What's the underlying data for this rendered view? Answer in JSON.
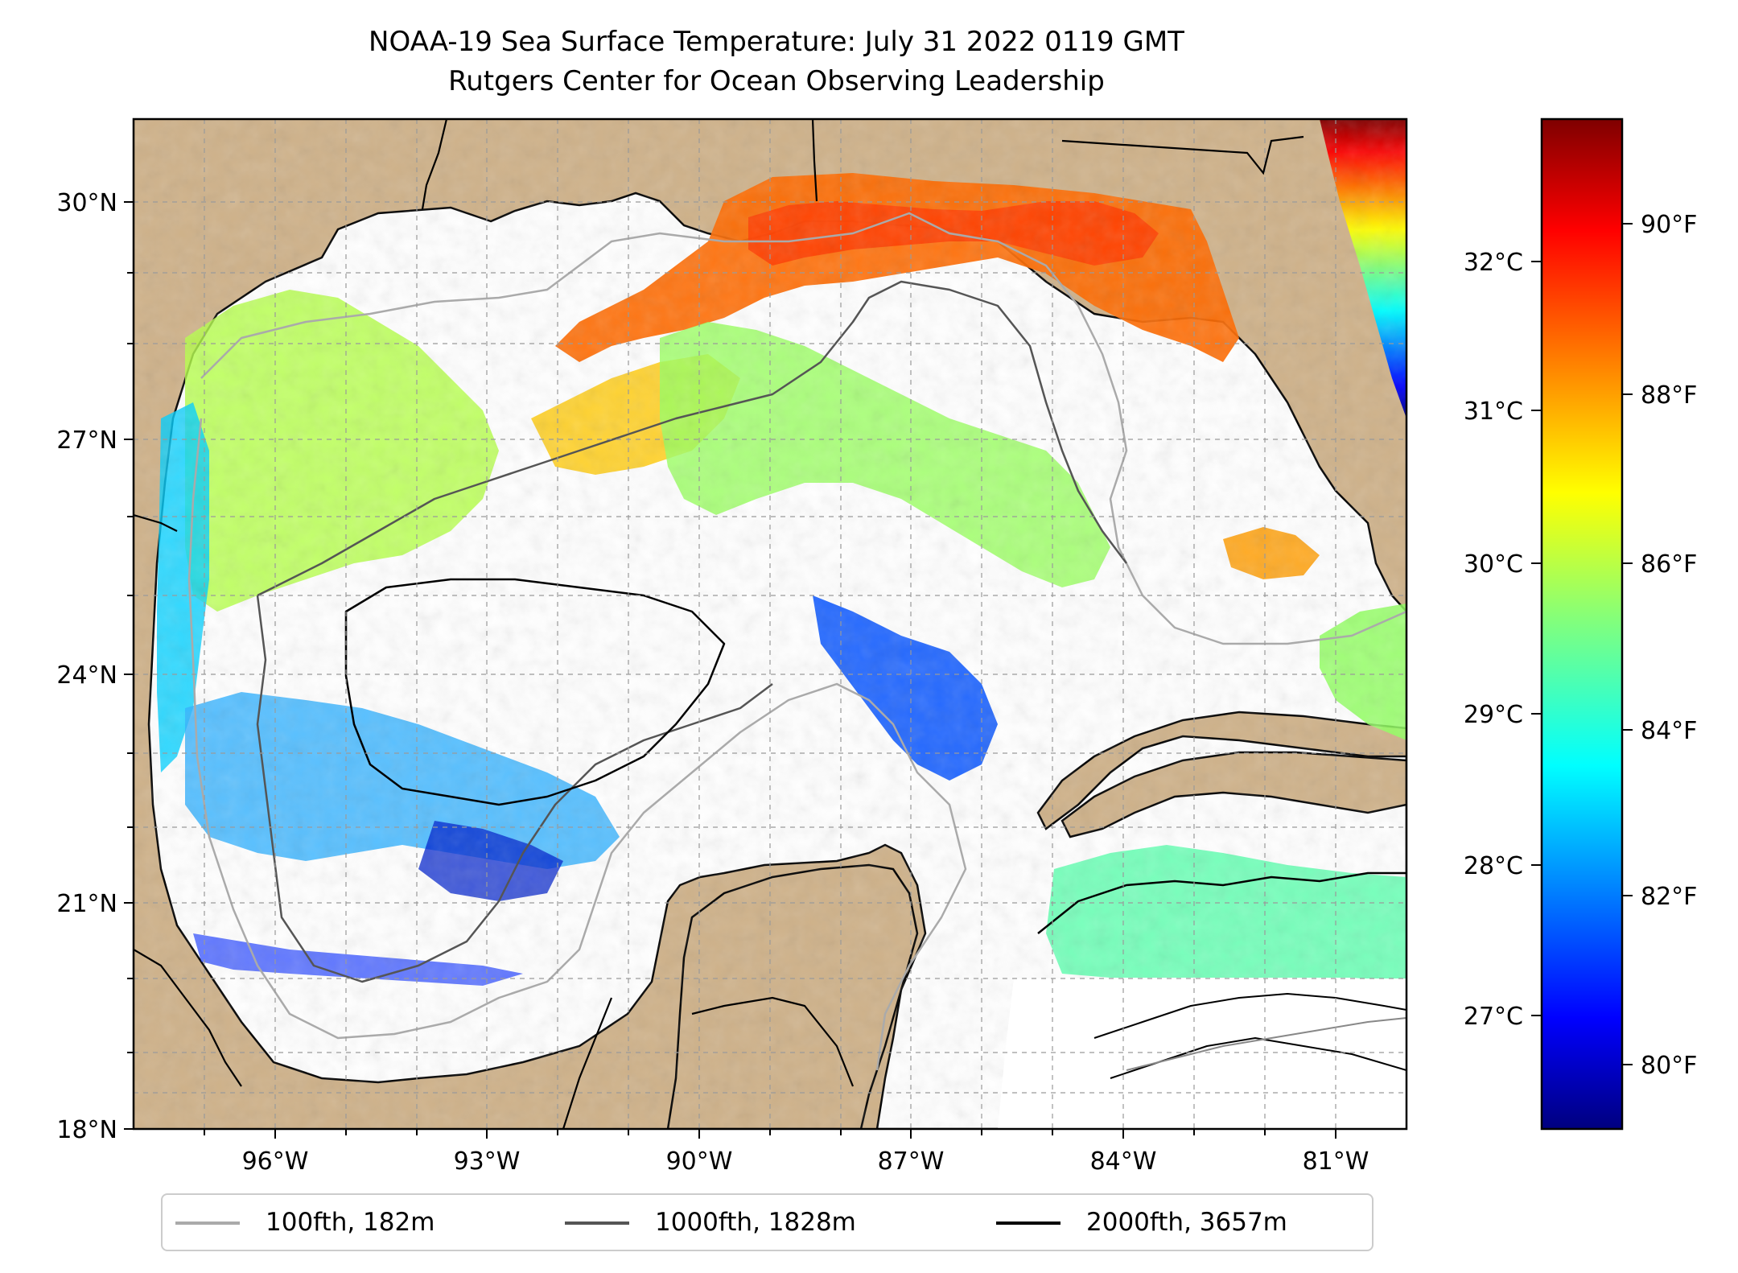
{
  "title": "NOAA-19 Sea Surface Temperature: July 31 2022 0119 GMT",
  "subtitle": "Rutgers Center for Ocean Observing Leadership",
  "map": {
    "lat_ticks": [
      "30°N",
      "27°N",
      "24°N",
      "21°N",
      "18°N"
    ],
    "lon_ticks": [
      "96°W",
      "93°W",
      "90°W",
      "87°W",
      "84°W",
      "81°W"
    ],
    "lat_range": [
      18,
      31
    ],
    "lon_range": [
      -98,
      -80
    ],
    "colors": {
      "land": "#cfb28a",
      "ocean_nodata": "#ffffff",
      "coast": "#000000"
    }
  },
  "colorbar": {
    "celsius_ticks": [
      "32°C",
      "31°C",
      "30°C",
      "29°C",
      "28°C",
      "27°C"
    ],
    "fahrenheit_ticks": [
      "90°F",
      "88°F",
      "86°F",
      "84°F",
      "82°F",
      "80°F"
    ],
    "colormap": "jet"
  },
  "legend": {
    "items": [
      {
        "label": "100fth, 182m",
        "color": "#aaaaaa"
      },
      {
        "label": "1000fth, 1828m",
        "color": "#555555"
      },
      {
        "label": "2000fth, 3657m",
        "color": "#000000"
      }
    ]
  }
}
